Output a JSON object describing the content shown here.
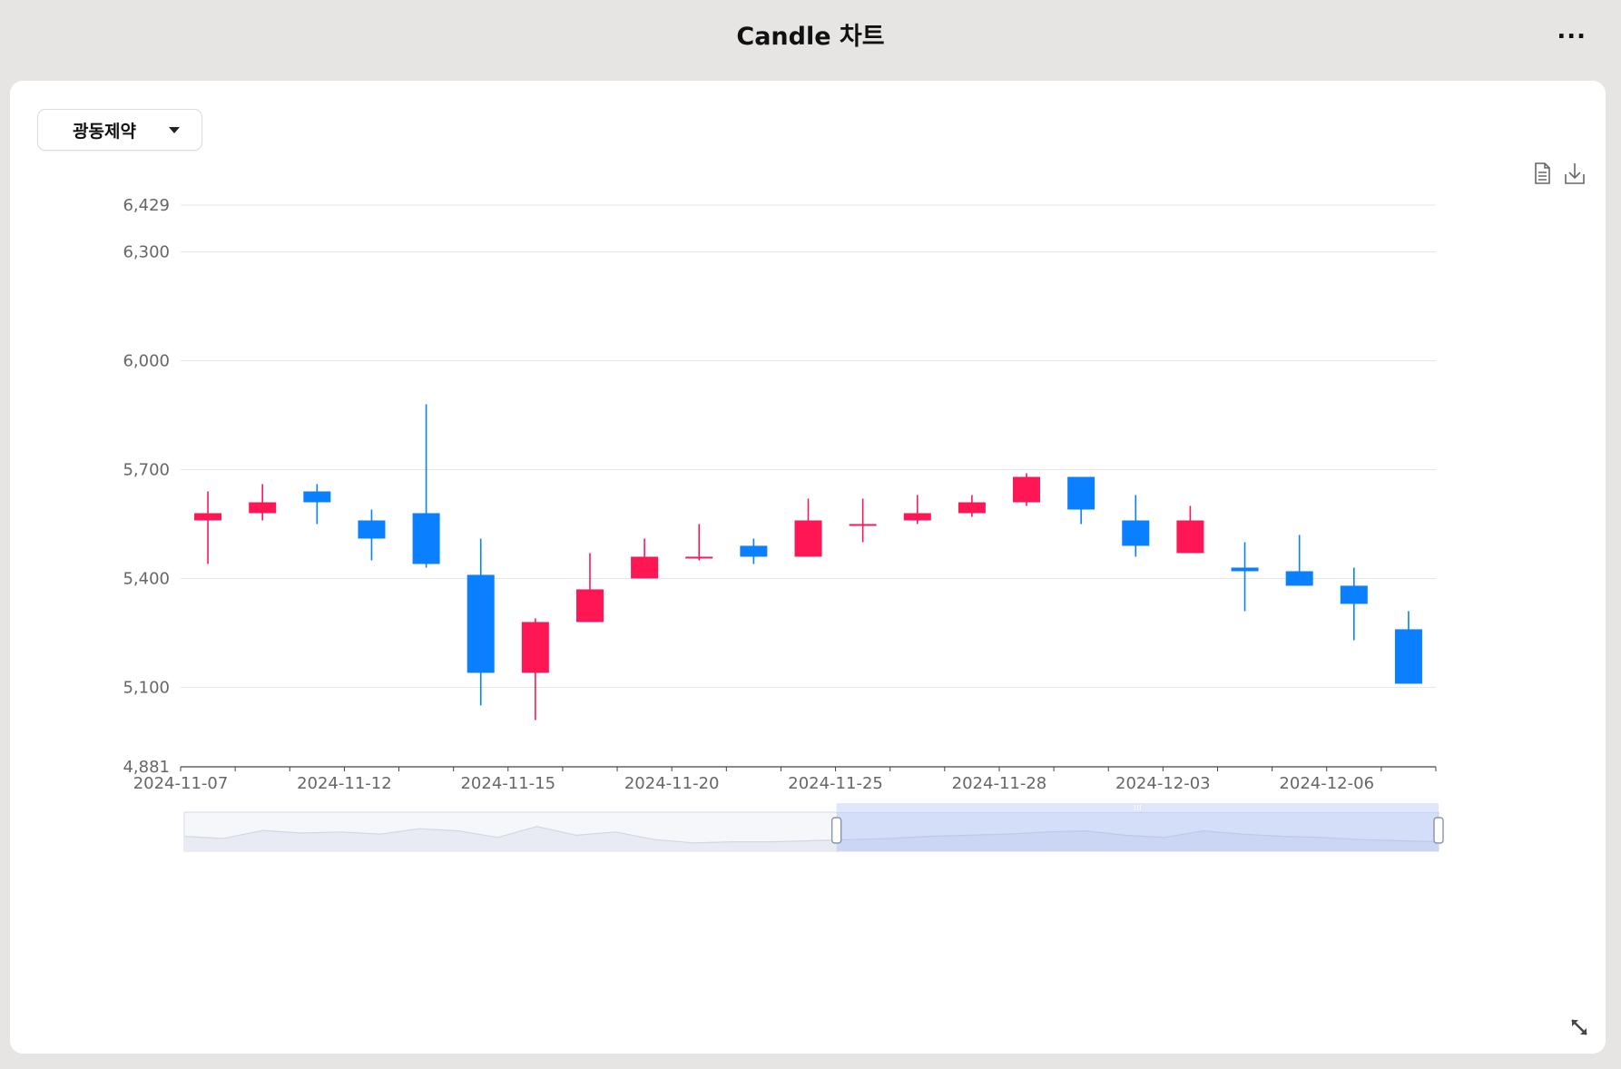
{
  "header": {
    "title": "Candle 차트",
    "more_label": "..."
  },
  "selector": {
    "selected": "광동제약"
  },
  "toolbar": {
    "doc_icon": "document-icon",
    "download_icon": "download-icon",
    "expand_icon": "expand-icon"
  },
  "colors": {
    "up": "#ff1654",
    "down": "#0a7fff",
    "grid": "#e5e5e5",
    "axis": "#666666"
  },
  "chart_data": {
    "type": "candlestick",
    "title": "",
    "ylim": [
      4881,
      6429
    ],
    "y_ticks": [
      4881,
      5100,
      5400,
      5700,
      6000,
      6300,
      6429
    ],
    "y_tick_labels": [
      "4,881",
      "5,100",
      "5,400",
      "5,700",
      "6,000",
      "6,300",
      "6,429"
    ],
    "x_tick_labels": [
      {
        "index": 0,
        "label": "2024-11-07"
      },
      {
        "index": 3,
        "label": "2024-11-12"
      },
      {
        "index": 6,
        "label": "2024-11-15"
      },
      {
        "index": 9,
        "label": "2024-11-20"
      },
      {
        "index": 12,
        "label": "2024-11-25"
      },
      {
        "index": 15,
        "label": "2024-11-28"
      },
      {
        "index": 18,
        "label": "2024-12-03"
      },
      {
        "index": 21,
        "label": "2024-12-06"
      }
    ],
    "candles": [
      {
        "open": 5560,
        "close": 5580,
        "high": 5640,
        "low": 5440
      },
      {
        "open": 5580,
        "close": 5610,
        "high": 5660,
        "low": 5560
      },
      {
        "open": 5640,
        "close": 5610,
        "high": 5660,
        "low": 5550
      },
      {
        "open": 5560,
        "close": 5510,
        "high": 5590,
        "low": 5450
      },
      {
        "open": 5580,
        "close": 5440,
        "high": 5880,
        "low": 5430
      },
      {
        "open": 5410,
        "close": 5140,
        "high": 5510,
        "low": 5050
      },
      {
        "open": 5140,
        "close": 5280,
        "high": 5290,
        "low": 5010
      },
      {
        "open": 5280,
        "close": 5370,
        "high": 5470,
        "low": 5280
      },
      {
        "open": 5400,
        "close": 5460,
        "high": 5510,
        "low": 5400
      },
      {
        "open": 5460,
        "close": 5460,
        "high": 5550,
        "low": 5450
      },
      {
        "open": 5490,
        "close": 5460,
        "high": 5510,
        "low": 5440
      },
      {
        "open": 5460,
        "close": 5560,
        "high": 5620,
        "low": 5460
      },
      {
        "open": 5550,
        "close": 5550,
        "high": 5620,
        "low": 5500
      },
      {
        "open": 5560,
        "close": 5580,
        "high": 5630,
        "low": 5550
      },
      {
        "open": 5580,
        "close": 5610,
        "high": 5630,
        "low": 5570
      },
      {
        "open": 5610,
        "close": 5680,
        "high": 5690,
        "low": 5600
      },
      {
        "open": 5680,
        "close": 5590,
        "high": 5680,
        "low": 5550
      },
      {
        "open": 5560,
        "close": 5490,
        "high": 5630,
        "low": 5460
      },
      {
        "open": 5470,
        "close": 5560,
        "high": 5600,
        "low": 5470
      },
      {
        "open": 5430,
        "close": 5420,
        "high": 5500,
        "low": 5310
      },
      {
        "open": 5420,
        "close": 5380,
        "high": 5520,
        "low": 5380
      },
      {
        "open": 5380,
        "close": 5330,
        "high": 5430,
        "low": 5230
      },
      {
        "open": 5260,
        "close": 5110,
        "high": 5310,
        "low": 5110
      }
    ],
    "zoom_window": [
      0.52,
      1.0
    ],
    "overview_line": [
      0.35,
      0.25,
      0.62,
      0.5,
      0.55,
      0.45,
      0.7,
      0.6,
      0.3,
      0.8,
      0.4,
      0.55,
      0.2,
      0.05,
      0.1,
      0.1,
      0.15,
      0.2,
      0.25,
      0.35,
      0.4,
      0.45,
      0.55,
      0.6,
      0.4,
      0.3,
      0.6,
      0.45,
      0.35,
      0.3,
      0.2,
      0.15,
      0.1
    ]
  }
}
